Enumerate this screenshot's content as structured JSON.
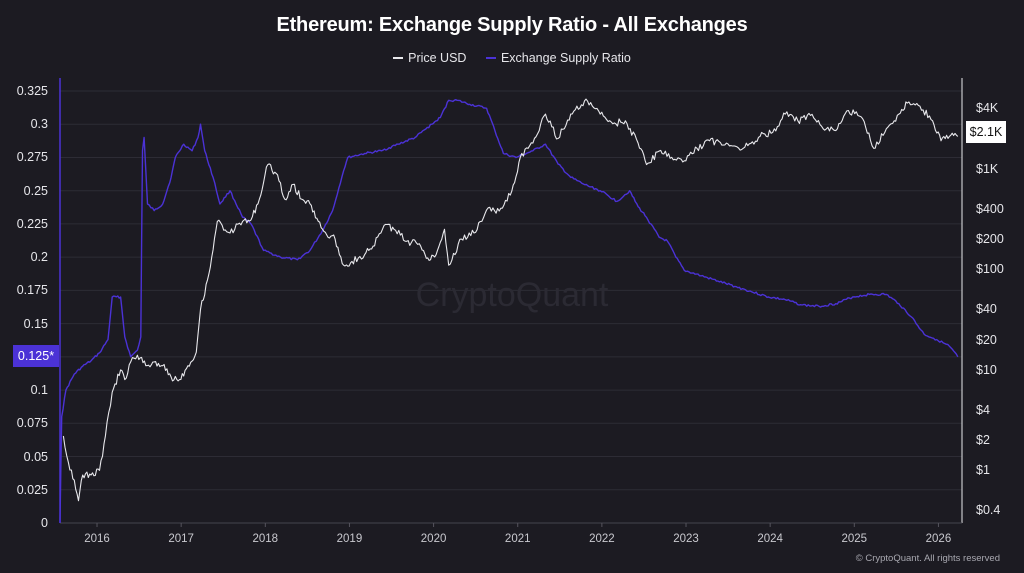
{
  "colors": {
    "price": "#e8e8ec",
    "ratio": "#4b32d6",
    "background": "#1c1b22",
    "grid": "#2d2c35"
  },
  "watermark": "CryptoQuant",
  "copyright": "© CryptoQuant. All rights reserved",
  "chart_data": {
    "type": "line",
    "title": "Ethereum: Exchange Supply Ratio - All Exchanges",
    "legend": [
      "Price USD",
      "Exchange Supply Ratio"
    ],
    "legend_placement": "top-center",
    "grid": true,
    "x_ticks": [
      "2016",
      "2017",
      "2018",
      "2019",
      "2020",
      "2021",
      "2022",
      "2023",
      "2024",
      "2025",
      "2026"
    ],
    "x_range": [
      2015.58,
      2026.3
    ],
    "left_axis": {
      "series": "Exchange Supply Ratio",
      "range": [
        0,
        0.325
      ],
      "ticks": [
        "0",
        "0.025",
        "0.05",
        "0.075",
        "0.1",
        "0.125",
        "0.15",
        "0.175",
        "0.2",
        "0.225",
        "0.25",
        "0.275",
        "0.3",
        "0.325"
      ],
      "current_label": "0.125*",
      "current_value": 0.125
    },
    "right_axis": {
      "series": "Price USD",
      "scale": "log",
      "range": [
        0.3,
        8000
      ],
      "ticks": [
        "$4K",
        "$1K",
        "$400",
        "$200",
        "$100",
        "$40",
        "$20",
        "$10",
        "$4",
        "$2",
        "$1",
        "$0.4"
      ],
      "tick_values": [
        4000,
        1000,
        400,
        200,
        100,
        40,
        20,
        10,
        4,
        2,
        1,
        0.4
      ],
      "current_label": "$2.1K",
      "current_value": 2100
    },
    "series": [
      {
        "name": "Exchange Supply Ratio",
        "axis": "left",
        "points": [
          [
            2015.58,
            0.0
          ],
          [
            2015.6,
            0.08
          ],
          [
            2015.65,
            0.1
          ],
          [
            2015.75,
            0.112
          ],
          [
            2015.85,
            0.118
          ],
          [
            2015.95,
            0.122
          ],
          [
            2016.05,
            0.128
          ],
          [
            2016.15,
            0.138
          ],
          [
            2016.2,
            0.17
          ],
          [
            2016.3,
            0.17
          ],
          [
            2016.35,
            0.14
          ],
          [
            2016.42,
            0.125
          ],
          [
            2016.5,
            0.13
          ],
          [
            2016.54,
            0.14
          ],
          [
            2016.56,
            0.28
          ],
          [
            2016.58,
            0.29
          ],
          [
            2016.62,
            0.24
          ],
          [
            2016.7,
            0.235
          ],
          [
            2016.8,
            0.24
          ],
          [
            2016.9,
            0.26
          ],
          [
            2016.95,
            0.275
          ],
          [
            2017.05,
            0.285
          ],
          [
            2017.15,
            0.28
          ],
          [
            2017.22,
            0.29
          ],
          [
            2017.25,
            0.3
          ],
          [
            2017.3,
            0.28
          ],
          [
            2017.4,
            0.26
          ],
          [
            2017.48,
            0.24
          ],
          [
            2017.6,
            0.25
          ],
          [
            2017.75,
            0.23
          ],
          [
            2017.85,
            0.225
          ],
          [
            2018.0,
            0.205
          ],
          [
            2018.2,
            0.2
          ],
          [
            2018.4,
            0.198
          ],
          [
            2018.55,
            0.205
          ],
          [
            2018.7,
            0.22
          ],
          [
            2018.82,
            0.235
          ],
          [
            2018.95,
            0.265
          ],
          [
            2019.0,
            0.275
          ],
          [
            2019.2,
            0.278
          ],
          [
            2019.4,
            0.28
          ],
          [
            2019.6,
            0.285
          ],
          [
            2019.8,
            0.29
          ],
          [
            2020.0,
            0.3
          ],
          [
            2020.1,
            0.305
          ],
          [
            2020.2,
            0.318
          ],
          [
            2020.3,
            0.318
          ],
          [
            2020.45,
            0.315
          ],
          [
            2020.65,
            0.312
          ],
          [
            2020.75,
            0.295
          ],
          [
            2020.85,
            0.278
          ],
          [
            2021.0,
            0.275
          ],
          [
            2021.2,
            0.28
          ],
          [
            2021.35,
            0.285
          ],
          [
            2021.5,
            0.27
          ],
          [
            2021.65,
            0.26
          ],
          [
            2021.8,
            0.255
          ],
          [
            2022.0,
            0.25
          ],
          [
            2022.2,
            0.242
          ],
          [
            2022.35,
            0.25
          ],
          [
            2022.45,
            0.238
          ],
          [
            2022.55,
            0.23
          ],
          [
            2022.7,
            0.215
          ],
          [
            2022.8,
            0.212
          ],
          [
            2022.9,
            0.2
          ],
          [
            2023.0,
            0.19
          ],
          [
            2023.2,
            0.186
          ],
          [
            2023.4,
            0.182
          ],
          [
            2023.6,
            0.178
          ],
          [
            2023.8,
            0.174
          ],
          [
            2024.0,
            0.17
          ],
          [
            2024.2,
            0.168
          ],
          [
            2024.4,
            0.164
          ],
          [
            2024.6,
            0.163
          ],
          [
            2024.8,
            0.165
          ],
          [
            2025.0,
            0.17
          ],
          [
            2025.2,
            0.172
          ],
          [
            2025.4,
            0.172
          ],
          [
            2025.55,
            0.165
          ],
          [
            2025.7,
            0.155
          ],
          [
            2025.85,
            0.142
          ],
          [
            2026.0,
            0.138
          ],
          [
            2026.15,
            0.133
          ],
          [
            2026.25,
            0.125
          ]
        ]
      },
      {
        "name": "Price USD",
        "axis": "right",
        "points": [
          [
            2015.62,
            2.2
          ],
          [
            2015.68,
            1.2
          ],
          [
            2015.75,
            0.8
          ],
          [
            2015.8,
            0.5
          ],
          [
            2015.85,
            0.9
          ],
          [
            2015.95,
            0.9
          ],
          [
            2016.05,
            1.0
          ],
          [
            2016.12,
            2.2
          ],
          [
            2016.2,
            6.0
          ],
          [
            2016.3,
            10.0
          ],
          [
            2016.35,
            8.0
          ],
          [
            2016.42,
            12.0
          ],
          [
            2016.5,
            14.0
          ],
          [
            2016.6,
            11.0
          ],
          [
            2016.7,
            12.0
          ],
          [
            2016.8,
            11.0
          ],
          [
            2016.9,
            8.5
          ],
          [
            2017.0,
            8.0
          ],
          [
            2017.1,
            11.0
          ],
          [
            2017.2,
            15.0
          ],
          [
            2017.25,
            40.0
          ],
          [
            2017.35,
            90.0
          ],
          [
            2017.45,
            300.0
          ],
          [
            2017.6,
            230.0
          ],
          [
            2017.75,
            300.0
          ],
          [
            2017.85,
            310.0
          ],
          [
            2017.95,
            500.0
          ],
          [
            2018.05,
            1100.0
          ],
          [
            2018.15,
            900.0
          ],
          [
            2018.25,
            500.0
          ],
          [
            2018.35,
            700.0
          ],
          [
            2018.45,
            500.0
          ],
          [
            2018.55,
            450.0
          ],
          [
            2018.65,
            300.0
          ],
          [
            2018.75,
            220.0
          ],
          [
            2018.85,
            200.0
          ],
          [
            2018.95,
            110.0
          ],
          [
            2019.05,
            120.0
          ],
          [
            2019.2,
            140.0
          ],
          [
            2019.3,
            170.0
          ],
          [
            2019.45,
            280.0
          ],
          [
            2019.55,
            250.0
          ],
          [
            2019.7,
            190.0
          ],
          [
            2019.85,
            180.0
          ],
          [
            2019.95,
            130.0
          ],
          [
            2020.05,
            140.0
          ],
          [
            2020.15,
            250.0
          ],
          [
            2020.2,
            110.0
          ],
          [
            2020.35,
            200.0
          ],
          [
            2020.5,
            230.0
          ],
          [
            2020.65,
            390.0
          ],
          [
            2020.8,
            380.0
          ],
          [
            2020.95,
            600.0
          ],
          [
            2021.05,
            1300.0
          ],
          [
            2021.2,
            1800.0
          ],
          [
            2021.35,
            3500.0
          ],
          [
            2021.5,
            2000.0
          ],
          [
            2021.65,
            3500.0
          ],
          [
            2021.85,
            4700.0
          ],
          [
            2022.0,
            3500.0
          ],
          [
            2022.15,
            2800.0
          ],
          [
            2022.3,
            3000.0
          ],
          [
            2022.45,
            1800.0
          ],
          [
            2022.55,
            1100.0
          ],
          [
            2022.7,
            1500.0
          ],
          [
            2022.85,
            1300.0
          ],
          [
            2023.0,
            1200.0
          ],
          [
            2023.15,
            1600.0
          ],
          [
            2023.3,
            1900.0
          ],
          [
            2023.5,
            1800.0
          ],
          [
            2023.7,
            1600.0
          ],
          [
            2023.9,
            2100.0
          ],
          [
            2024.05,
            2300.0
          ],
          [
            2024.2,
            3500.0
          ],
          [
            2024.35,
            3000.0
          ],
          [
            2024.5,
            3400.0
          ],
          [
            2024.65,
            2500.0
          ],
          [
            2024.8,
            2400.0
          ],
          [
            2024.95,
            3800.0
          ],
          [
            2025.1,
            3300.0
          ],
          [
            2025.25,
            1600.0
          ],
          [
            2025.4,
            2500.0
          ],
          [
            2025.55,
            3500.0
          ],
          [
            2025.65,
            4500.0
          ],
          [
            2025.8,
            4200.0
          ],
          [
            2025.95,
            3000.0
          ],
          [
            2026.05,
            1900.0
          ],
          [
            2026.15,
            2100.0
          ],
          [
            2026.25,
            2100.0
          ]
        ]
      }
    ]
  }
}
